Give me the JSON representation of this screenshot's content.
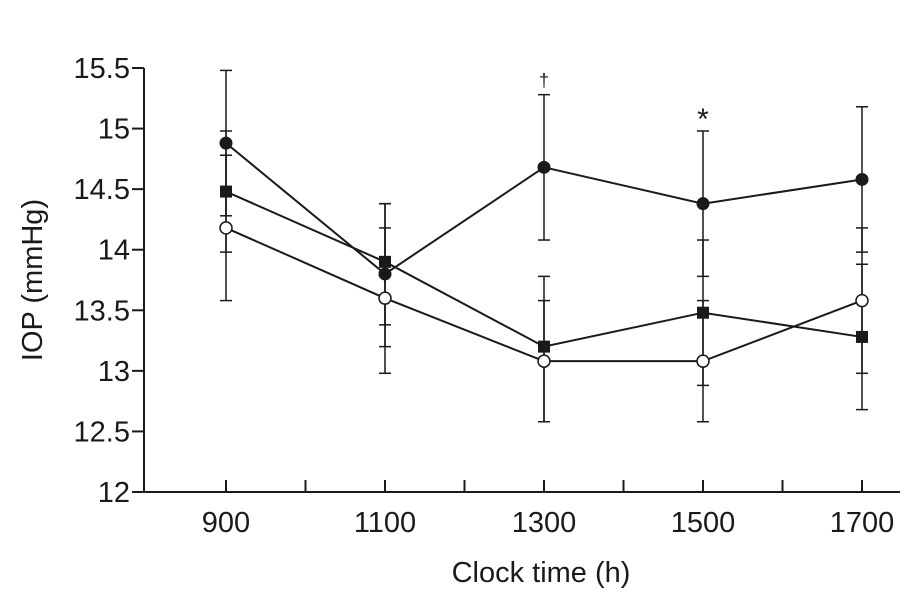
{
  "chart_data": {
    "type": "line",
    "title": "",
    "xlabel": "Clock time (h)",
    "ylabel": "IOP (mmHg)",
    "x": [
      900,
      1100,
      1300,
      1500,
      1700
    ],
    "x_tick_labels": [
      "900",
      "1100",
      "1300",
      "1500",
      "1700"
    ],
    "y_tick_values": [
      12,
      12.5,
      13,
      13.5,
      14,
      14.5,
      15,
      15.5
    ],
    "y_tick_labels": [
      "12",
      "12.5",
      "13",
      "13.5",
      "14",
      "14.5",
      "15",
      "15.5"
    ],
    "xlim": [
      800,
      1800
    ],
    "ylim": [
      12,
      15.5
    ],
    "grid": false,
    "series": [
      {
        "name": "filled circle",
        "marker": "filled-circle",
        "values": [
          14.88,
          13.8,
          14.68,
          14.38,
          14.58
        ],
        "err_low": [
          14.28,
          13.2,
          14.08,
          13.78,
          13.98
        ],
        "err_high": [
          15.48,
          14.38,
          15.28,
          14.98,
          15.18
        ]
      },
      {
        "name": "filled square",
        "marker": "filled-square",
        "values": [
          14.48,
          13.9,
          13.2,
          13.48,
          13.28
        ],
        "err_low": [
          13.98,
          13.38,
          12.58,
          12.88,
          12.68
        ],
        "err_high": [
          14.98,
          14.38,
          13.78,
          14.08,
          13.88
        ]
      },
      {
        "name": "open circle",
        "marker": "open-circle",
        "values": [
          14.18,
          13.6,
          13.08,
          13.08,
          13.58
        ],
        "err_low": [
          13.58,
          12.98,
          12.58,
          12.58,
          12.98
        ],
        "err_high": [
          14.78,
          14.18,
          13.58,
          13.58,
          14.18
        ]
      }
    ],
    "annotations": [
      {
        "text": "†",
        "x": 1300,
        "y": 15.28
      },
      {
        "text": "*",
        "x": 1500,
        "y": 14.98
      }
    ]
  }
}
